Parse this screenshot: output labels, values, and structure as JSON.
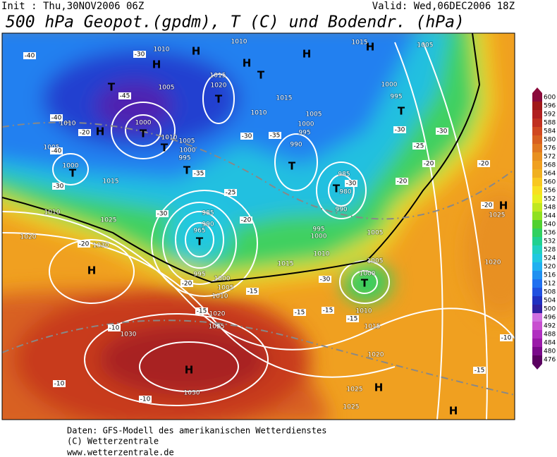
{
  "header": {
    "init": "Init : Thu,30NOV2006 06Z",
    "valid": "Valid: Wed,06DEC2006 18Z",
    "title": "500 hPa Geopot.(gpdm), T (C) und Bodendr. (hPa)"
  },
  "map": {
    "highs": [
      "H",
      "H",
      "H",
      "H",
      "H",
      "H",
      "H",
      "H",
      "H",
      "H",
      "H"
    ],
    "lows": [
      "T",
      "T",
      "T",
      "T",
      "T",
      "T",
      "T",
      "T",
      "T",
      "T",
      "T",
      "T"
    ],
    "isobar_labels": [
      "1010",
      "1015",
      "1005",
      "1010",
      "1015",
      "1020",
      "1005",
      "1000",
      "995",
      "1015",
      "1010",
      "1005",
      "1000",
      "995",
      "990",
      "1000",
      "1010",
      "1005",
      "1000",
      "1015",
      "1010",
      "1005",
      "1000",
      "995",
      "985",
      "980",
      "990",
      "990",
      "985",
      "965",
      "1010",
      "1025",
      "1020",
      "1030",
      "995",
      "1000",
      "1005",
      "1010",
      "1015",
      "995",
      "1000",
      "1005",
      "1010",
      "1020",
      "1025",
      "1030",
      "1000",
      "1005",
      "1010",
      "1015",
      "1020",
      "1025",
      "1025",
      "1030",
      "1020",
      "1025"
    ],
    "temp_labels": [
      "-40",
      "-30",
      "-45",
      "-40",
      "-20",
      "-40",
      "-30",
      "-35",
      "-30",
      "-35",
      "-25",
      "-30",
      "-20",
      "-30",
      "-25",
      "-30",
      "-30",
      "-20",
      "-20",
      "-20",
      "-20",
      "-20",
      "-30",
      "-20",
      "-15",
      "-15",
      "-15",
      "-15",
      "-15",
      "-10",
      "-10",
      "-10",
      "-15",
      "-10"
    ]
  },
  "colorbar": {
    "ticks": [
      600,
      596,
      592,
      588,
      584,
      580,
      576,
      572,
      568,
      564,
      560,
      556,
      552,
      548,
      544,
      540,
      536,
      532,
      528,
      524,
      520,
      516,
      512,
      508,
      504,
      500,
      496,
      492,
      488,
      484,
      480,
      476
    ],
    "colors": [
      "#8a0a3a",
      "#a01818",
      "#b02020",
      "#c03020",
      "#d04820",
      "#d86020",
      "#e07820",
      "#e89020",
      "#f0a020",
      "#f0b020",
      "#f8c820",
      "#f8e020",
      "#e8f020",
      "#c0e820",
      "#90e020",
      "#50d030",
      "#30d060",
      "#20d090",
      "#20d0c0",
      "#20c8e0",
      "#20b0f0",
      "#2090f0",
      "#2070f0",
      "#2050e0",
      "#2030c0",
      "#3020a0",
      "#d070e0",
      "#c850d0",
      "#b030c0",
      "#9a1aa8",
      "#7a0a8a",
      "#5a0060"
    ]
  },
  "footer": {
    "line1": "Daten: GFS-Modell des amerikanischen Wetterdienstes",
    "line2": "(C) Wetterzentrale",
    "line3": "www.wetterzentrale.de"
  }
}
